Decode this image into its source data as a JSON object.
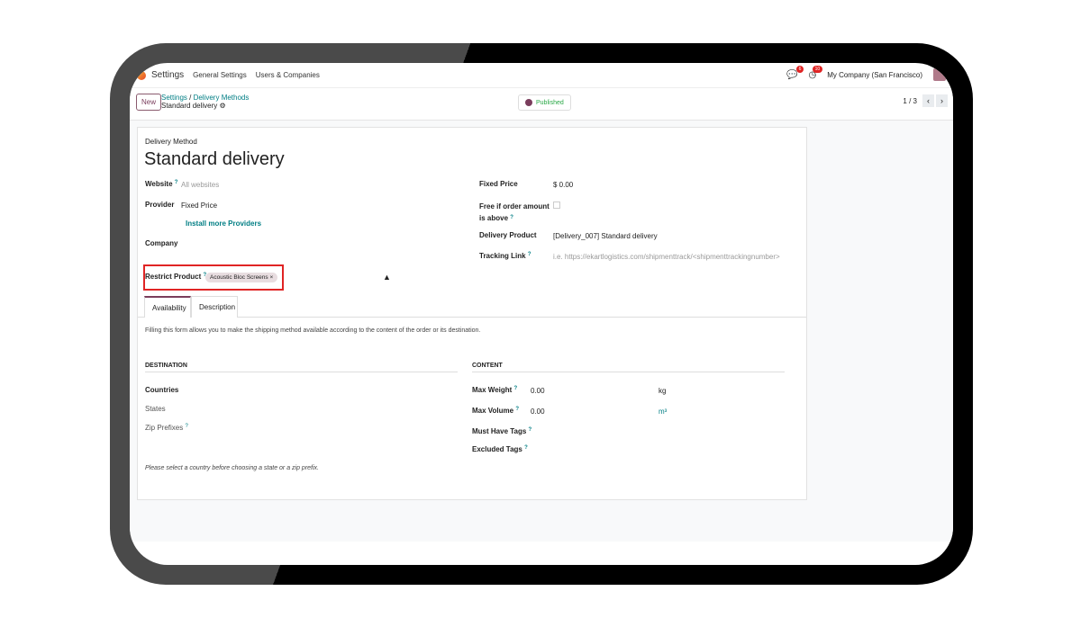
{
  "nav": {
    "app": "Settings",
    "menu": [
      "General Settings",
      "Users & Companies"
    ],
    "chat_count": "6",
    "activity_count": "10",
    "company": "My Company (San Francisco)"
  },
  "control": {
    "new_label": "New",
    "breadcrumb": [
      "Settings",
      "Delivery Methods"
    ],
    "current": "Standard delivery",
    "published": "Published",
    "pager": "1 / 3"
  },
  "form": {
    "subtitle": "Delivery Method",
    "title": "Standard delivery",
    "website_label": "Website",
    "website_value": "All websites",
    "provider_label": "Provider",
    "provider_value": "Fixed Price",
    "install_link": "Install more Providers",
    "company_label": "Company",
    "restrict_label": "Restrict Product",
    "restrict_tag": "Acoustic Bloc Screens",
    "fixed_price_label": "Fixed Price",
    "fixed_price_value": "$ 0.00",
    "free_label": "Free if order amount is above",
    "delivery_product_label": "Delivery Product",
    "delivery_product_value": "[Delivery_007] Standard delivery",
    "tracking_label": "Tracking Link",
    "tracking_placeholder": "i.e. https://ekartlogistics.com/shipmenttrack/<shipmenttrackingnumber>"
  },
  "tabs": [
    "Availability",
    "Description"
  ],
  "availability": {
    "intro": "Filling this form allows you to make the shipping method available according to the content of the order or its destination.",
    "destination": {
      "heading": "DESTINATION",
      "countries": "Countries",
      "states": "States",
      "zip": "Zip Prefixes",
      "note": "Please select a country before choosing a state or a zip prefix."
    },
    "content": {
      "heading": "CONTENT",
      "max_weight": "Max Weight",
      "weight_value": "0.00",
      "weight_unit": "kg",
      "max_volume": "Max Volume",
      "volume_value": "0.00",
      "volume_unit": "m³",
      "must_have": "Must Have Tags",
      "excluded": "Excluded Tags"
    }
  }
}
